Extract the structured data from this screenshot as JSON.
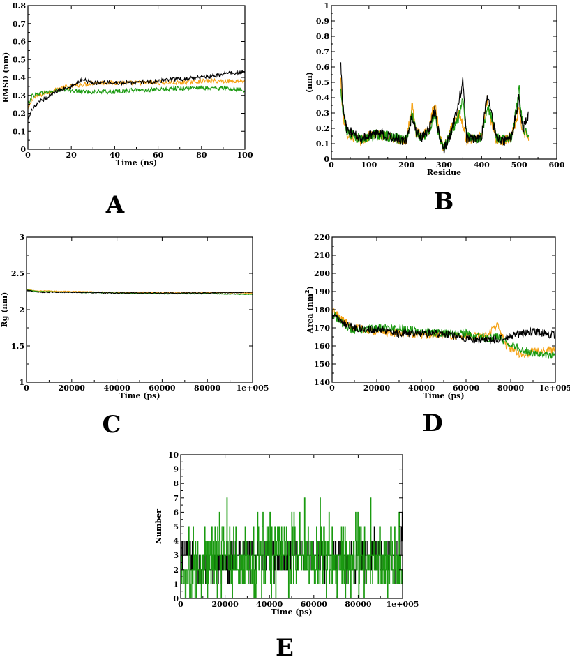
{
  "colors": {
    "black": "#000000",
    "orange": "#f5a214",
    "green": "#1a9a10"
  },
  "chart_data": [
    {
      "id": "A",
      "panel_label": "A",
      "type": "line",
      "xlabel": "Time (ns)",
      "ylabel": "RMSD (nm)",
      "xlim": [
        0,
        100
      ],
      "ylim": [
        0,
        0.8
      ],
      "xticks": [
        0,
        20,
        40,
        60,
        80,
        100
      ],
      "xtick_labels": [
        "0",
        "20",
        "40",
        "60",
        "80",
        "100"
      ],
      "yticks": [
        0,
        0.1,
        0.2,
        0.3,
        0.4,
        0.5,
        0.6,
        0.7,
        0.8
      ],
      "ytick_labels": [
        "0",
        "0.1",
        "0.2",
        "0.3",
        "0.4",
        "0.5",
        "0.6",
        "0.7",
        "0.8"
      ],
      "grid": false,
      "noise": 0.012,
      "samples": 400,
      "series": [
        {
          "color": "orange",
          "x": [
            0,
            2,
            5,
            10,
            15,
            20,
            25,
            30,
            40,
            50,
            60,
            70,
            80,
            90,
            100
          ],
          "y": [
            0.22,
            0.28,
            0.3,
            0.32,
            0.34,
            0.35,
            0.36,
            0.37,
            0.37,
            0.37,
            0.37,
            0.37,
            0.38,
            0.38,
            0.38
          ]
        },
        {
          "color": "green",
          "x": [
            0,
            2,
            5,
            10,
            15,
            20,
            25,
            30,
            40,
            50,
            60,
            70,
            80,
            90,
            100
          ],
          "y": [
            0.25,
            0.3,
            0.31,
            0.32,
            0.33,
            0.33,
            0.32,
            0.32,
            0.32,
            0.33,
            0.33,
            0.34,
            0.34,
            0.34,
            0.33
          ]
        },
        {
          "color": "black",
          "x": [
            0,
            2,
            5,
            10,
            15,
            20,
            25,
            30,
            40,
            50,
            60,
            70,
            80,
            90,
            100
          ],
          "y": [
            0.16,
            0.22,
            0.26,
            0.3,
            0.33,
            0.35,
            0.39,
            0.37,
            0.37,
            0.37,
            0.38,
            0.39,
            0.4,
            0.42,
            0.43
          ]
        }
      ]
    },
    {
      "id": "B",
      "panel_label": "B",
      "type": "line",
      "xlabel": "Residue",
      "ylabel": "(nm)",
      "xlim": [
        0,
        600
      ],
      "ylim": [
        0,
        1
      ],
      "xticks": [
        0,
        100,
        200,
        300,
        400,
        500,
        600
      ],
      "xtick_labels": [
        "0",
        "100",
        "200",
        "300",
        "400",
        "500",
        "600"
      ],
      "yticks": [
        0,
        0.1,
        0.2,
        0.3,
        0.4,
        0.5,
        0.6,
        0.7,
        0.8,
        0.9,
        1
      ],
      "ytick_labels": [
        "0",
        "0.1",
        "0.2",
        "0.3",
        "0.4",
        "0.5",
        "0.6",
        "0.7",
        "0.8",
        "0.9",
        "1"
      ],
      "grid": false,
      "noise": 0.035,
      "samples": 500,
      "series": [
        {
          "color": "orange",
          "x": [
            25,
            30,
            40,
            60,
            80,
            100,
            120,
            150,
            180,
            200,
            215,
            225,
            240,
            260,
            275,
            290,
            300,
            320,
            340,
            350,
            360,
            380,
            400,
            415,
            425,
            440,
            460,
            480,
            500,
            510,
            525
          ],
          "y": [
            0.52,
            0.3,
            0.17,
            0.14,
            0.12,
            0.15,
            0.16,
            0.14,
            0.13,
            0.12,
            0.35,
            0.18,
            0.15,
            0.2,
            0.38,
            0.12,
            0.07,
            0.2,
            0.3,
            0.22,
            0.12,
            0.14,
            0.14,
            0.4,
            0.25,
            0.12,
            0.12,
            0.15,
            0.32,
            0.18,
            0.15
          ]
        },
        {
          "color": "green",
          "x": [
            25,
            30,
            40,
            60,
            80,
            100,
            120,
            150,
            180,
            200,
            215,
            225,
            240,
            260,
            275,
            290,
            300,
            320,
            340,
            350,
            360,
            380,
            400,
            415,
            425,
            440,
            460,
            480,
            500,
            510,
            525
          ],
          "y": [
            0.45,
            0.33,
            0.18,
            0.15,
            0.13,
            0.14,
            0.16,
            0.15,
            0.13,
            0.12,
            0.3,
            0.17,
            0.14,
            0.18,
            0.3,
            0.12,
            0.07,
            0.18,
            0.28,
            0.4,
            0.15,
            0.13,
            0.14,
            0.35,
            0.28,
            0.13,
            0.13,
            0.14,
            0.45,
            0.2,
            0.16
          ]
        },
        {
          "color": "black",
          "x": [
            25,
            30,
            40,
            60,
            80,
            100,
            120,
            150,
            180,
            200,
            215,
            225,
            240,
            260,
            275,
            290,
            300,
            320,
            340,
            350,
            360,
            380,
            400,
            415,
            425,
            440,
            460,
            480,
            500,
            510,
            525
          ],
          "y": [
            0.62,
            0.35,
            0.2,
            0.16,
            0.13,
            0.15,
            0.17,
            0.15,
            0.13,
            0.12,
            0.28,
            0.18,
            0.14,
            0.19,
            0.32,
            0.12,
            0.06,
            0.18,
            0.38,
            0.5,
            0.14,
            0.12,
            0.15,
            0.42,
            0.3,
            0.13,
            0.12,
            0.15,
            0.4,
            0.2,
            0.28
          ]
        }
      ]
    },
    {
      "id": "C",
      "panel_label": "C",
      "type": "line",
      "xlabel": "Time (ps)",
      "ylabel": "Rg (nm)",
      "xlim": [
        0,
        100000
      ],
      "ylim": [
        1,
        3
      ],
      "xticks": [
        0,
        20000,
        40000,
        60000,
        80000,
        100000
      ],
      "xtick_labels": [
        "0",
        "20000",
        "40000",
        "60000",
        "80000",
        "1e+005"
      ],
      "yticks": [
        1,
        1.5,
        2,
        2.5,
        3
      ],
      "ytick_labels": [
        "1",
        "1.5",
        "2",
        "2.5",
        "3"
      ],
      "grid": false,
      "noise": 0.006,
      "samples": 400,
      "series": [
        {
          "color": "orange",
          "x": [
            0,
            5000,
            20000,
            40000,
            60000,
            80000,
            100000
          ],
          "y": [
            2.28,
            2.26,
            2.25,
            2.24,
            2.24,
            2.24,
            2.23
          ]
        },
        {
          "color": "green",
          "x": [
            0,
            5000,
            20000,
            40000,
            60000,
            80000,
            100000
          ],
          "y": [
            2.27,
            2.25,
            2.24,
            2.23,
            2.22,
            2.22,
            2.21
          ]
        },
        {
          "color": "black",
          "x": [
            0,
            5000,
            20000,
            40000,
            60000,
            80000,
            100000
          ],
          "y": [
            2.27,
            2.24,
            2.24,
            2.23,
            2.23,
            2.23,
            2.24
          ]
        }
      ]
    },
    {
      "id": "D",
      "panel_label": "D",
      "type": "line",
      "xlabel": "Time (ps)",
      "ylabel": "Area (nm",
      "ylabel_sup": "2",
      "ylabel_tail": ")",
      "xlim": [
        0,
        100000
      ],
      "ylim": [
        140,
        220
      ],
      "xticks": [
        0,
        20000,
        40000,
        60000,
        80000,
        100000
      ],
      "xtick_labels": [
        "0",
        "20000",
        "40000",
        "60000",
        "80000",
        "1e+005"
      ],
      "yticks": [
        140,
        150,
        160,
        170,
        180,
        190,
        200,
        210,
        220
      ],
      "ytick_labels": [
        "140",
        "150",
        "160",
        "170",
        "180",
        "190",
        "200",
        "210",
        "220"
      ],
      "grid": false,
      "noise": 2.2,
      "samples": 450,
      "series": [
        {
          "color": "orange",
          "x": [
            0,
            5000,
            10000,
            20000,
            30000,
            40000,
            50000,
            60000,
            70000,
            74000,
            78000,
            85000,
            90000,
            100000
          ],
          "y": [
            180,
            174,
            170,
            168,
            167,
            166,
            166,
            165,
            166,
            172,
            160,
            155,
            157,
            158
          ]
        },
        {
          "color": "green",
          "x": [
            0,
            5000,
            10000,
            20000,
            30000,
            40000,
            50000,
            60000,
            70000,
            74000,
            78000,
            85000,
            90000,
            100000
          ],
          "y": [
            178,
            172,
            168,
            170,
            170,
            168,
            167,
            167,
            164,
            165,
            162,
            158,
            156,
            154
          ]
        },
        {
          "color": "black",
          "x": [
            0,
            5000,
            10000,
            20000,
            30000,
            40000,
            50000,
            60000,
            70000,
            74000,
            78000,
            85000,
            90000,
            100000
          ],
          "y": [
            177,
            173,
            170,
            169,
            167,
            167,
            167,
            164,
            163,
            164,
            165,
            167,
            168,
            166
          ]
        }
      ]
    },
    {
      "id": "E",
      "panel_label": "E",
      "type": "line",
      "xlabel": "Time (ps)",
      "ylabel": "Number",
      "xlim": [
        0,
        100000
      ],
      "ylim": [
        0,
        10
      ],
      "xticks": [
        0,
        20000,
        40000,
        60000,
        80000,
        100000
      ],
      "xtick_labels": [
        "0",
        "20000",
        "40000",
        "60000",
        "80000",
        "1e+005"
      ],
      "yticks": [
        0,
        1,
        2,
        3,
        4,
        5,
        6,
        7,
        8,
        9,
        10
      ],
      "ytick_labels": [
        "0",
        "1",
        "2",
        "3",
        "4",
        "5",
        "6",
        "7",
        "8",
        "9",
        "10"
      ],
      "grid": false,
      "step": true,
      "samples": 500,
      "series": [
        {
          "color": "black",
          "x": [
            0,
            3000,
            6000,
            10000,
            20000,
            40000,
            60000,
            80000,
            99000,
            100000
          ],
          "y": [
            3,
            3.5,
            2.5,
            2,
            2.8,
            3,
            3,
            3,
            3,
            6
          ]
        },
        {
          "color": "green",
          "x": [
            0,
            10000,
            20000,
            40000,
            60000,
            80000,
            100000
          ],
          "y": [
            2,
            2,
            2.6,
            2.8,
            2.8,
            2.7,
            2.7
          ]
        }
      ]
    }
  ]
}
